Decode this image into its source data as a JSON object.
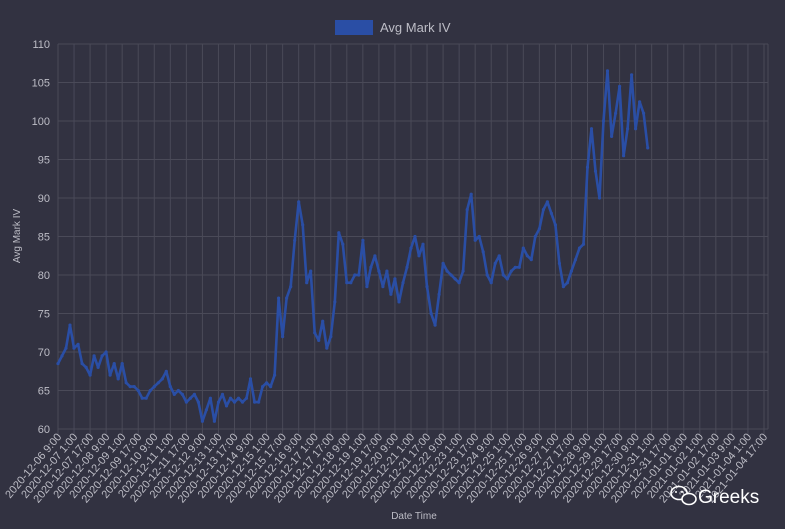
{
  "colors": {
    "background": "#323241",
    "series": "#2a4ea5",
    "text": "#bdbdc6",
    "grid": "#4a4a58"
  },
  "watermark": {
    "text": "Greeks",
    "icon": "wechat-icon"
  },
  "chart_data": {
    "type": "line",
    "title": "",
    "xlabel": "Date Time",
    "ylabel": "Avg Mark IV",
    "ylim": [
      60,
      110
    ],
    "yticks": [
      60,
      65,
      70,
      75,
      80,
      85,
      90,
      95,
      100,
      105,
      110
    ],
    "xticks": [
      "2020-12-06 9:00",
      "2020-12-07 1:00",
      "2020-12-07 17:00",
      "2020-12-08 9:00",
      "2020-12-09 1:00",
      "2020-12-09 17:00",
      "2020-12-10 9:00",
      "2020-12-11 1:00",
      "2020-12-11 17:00",
      "2020-12-12 9:00",
      "2020-12-13 1:00",
      "2020-12-13 17:00",
      "2020-12-14 9:00",
      "2020-12-15 1:00",
      "2020-12-15 17:00",
      "2020-12-16 9:00",
      "2020-12-17 1:00",
      "2020-12-17 17:00",
      "2020-12-18 9:00",
      "2020-12-19 1:00",
      "2020-12-19 17:00",
      "2020-12-20 9:00",
      "2020-12-21 1:00",
      "2020-12-21 17:00",
      "2020-12-22 9:00",
      "2020-12-23 1:00",
      "2020-12-23 17:00",
      "2020-12-24 9:00",
      "2020-12-25 1:00",
      "2020-12-25 17:00",
      "2020-12-26 9:00",
      "2020-12-27 1:00",
      "2020-12-27 17:00",
      "2020-12-28 9:00",
      "2020-12-29 1:00",
      "2020-12-29 17:00",
      "2020-12-30 9:00",
      "2020-12-31 1:00",
      "2020-12-31 17:00",
      "2021-01-01 9:00",
      "2021-01-02 1:00",
      "2021-01-02 17:00",
      "2021-01-03 9:00",
      "2021-01-04 1:00",
      "2021-01-04 17:00"
    ],
    "legend": {
      "position": "top-center"
    },
    "grid": true,
    "series": [
      {
        "name": "Avg Mark IV",
        "color": "#2a4ea5",
        "points": [
          [
            "2020-12-06 9:00",
            68.5
          ],
          [
            "2020-12-06 13:00",
            69.5
          ],
          [
            "2020-12-06 17:00",
            70.5
          ],
          [
            "2020-12-06 21:00",
            73.5
          ],
          [
            "2020-12-07 1:00",
            70.5
          ],
          [
            "2020-12-07 5:00",
            71.0
          ],
          [
            "2020-12-07 9:00",
            68.5
          ],
          [
            "2020-12-07 13:00",
            68.0
          ],
          [
            "2020-12-07 17:00",
            67.0
          ],
          [
            "2020-12-07 21:00",
            69.5
          ],
          [
            "2020-12-08 1:00",
            68.0
          ],
          [
            "2020-12-08 5:00",
            69.5
          ],
          [
            "2020-12-08 9:00",
            70.0
          ],
          [
            "2020-12-08 13:00",
            67.0
          ],
          [
            "2020-12-08 17:00",
            68.5
          ],
          [
            "2020-12-08 21:00",
            66.5
          ],
          [
            "2020-12-09 1:00",
            68.5
          ],
          [
            "2020-12-09 5:00",
            66.0
          ],
          [
            "2020-12-09 9:00",
            65.5
          ],
          [
            "2020-12-09 13:00",
            65.5
          ],
          [
            "2020-12-09 17:00",
            65.0
          ],
          [
            "2020-12-09 21:00",
            64.0
          ],
          [
            "2020-12-10 1:00",
            64.0
          ],
          [
            "2020-12-10 5:00",
            65.0
          ],
          [
            "2020-12-10 9:00",
            65.5
          ],
          [
            "2020-12-10 13:00",
            66.0
          ],
          [
            "2020-12-10 17:00",
            66.5
          ],
          [
            "2020-12-10 21:00",
            67.5
          ],
          [
            "2020-12-11 1:00",
            65.5
          ],
          [
            "2020-12-11 5:00",
            64.5
          ],
          [
            "2020-12-11 9:00",
            65.0
          ],
          [
            "2020-12-11 13:00",
            64.5
          ],
          [
            "2020-12-11 17:00",
            63.5
          ],
          [
            "2020-12-11 21:00",
            64.0
          ],
          [
            "2020-12-12 1:00",
            64.5
          ],
          [
            "2020-12-12 5:00",
            63.5
          ],
          [
            "2020-12-12 9:00",
            61.0
          ],
          [
            "2020-12-12 13:00",
            62.5
          ],
          [
            "2020-12-12 17:00",
            64.0
          ],
          [
            "2020-12-12 21:00",
            61.0
          ],
          [
            "2020-12-13 1:00",
            63.5
          ],
          [
            "2020-12-13 5:00",
            64.5
          ],
          [
            "2020-12-13 9:00",
            63.0
          ],
          [
            "2020-12-13 13:00",
            64.0
          ],
          [
            "2020-12-13 17:00",
            63.5
          ],
          [
            "2020-12-13 21:00",
            64.0
          ],
          [
            "2020-12-14 1:00",
            63.5
          ],
          [
            "2020-12-14 5:00",
            64.0
          ],
          [
            "2020-12-14 9:00",
            66.5
          ],
          [
            "2020-12-14 13:00",
            63.5
          ],
          [
            "2020-12-14 17:00",
            63.5
          ],
          [
            "2020-12-14 21:00",
            65.5
          ],
          [
            "2020-12-15 1:00",
            66.0
          ],
          [
            "2020-12-15 5:00",
            65.5
          ],
          [
            "2020-12-15 9:00",
            67.0
          ],
          [
            "2020-12-15 13:00",
            77.0
          ],
          [
            "2020-12-15 17:00",
            72.0
          ],
          [
            "2020-12-15 21:00",
            77.0
          ],
          [
            "2020-12-16 1:00",
            78.5
          ],
          [
            "2020-12-16 5:00",
            84.5
          ],
          [
            "2020-12-16 9:00",
            89.5
          ],
          [
            "2020-12-16 13:00",
            86.5
          ],
          [
            "2020-12-16 17:00",
            79.0
          ],
          [
            "2020-12-16 21:00",
            80.5
          ],
          [
            "2020-12-17 1:00",
            72.5
          ],
          [
            "2020-12-17 5:00",
            71.5
          ],
          [
            "2020-12-17 9:00",
            74.0
          ],
          [
            "2020-12-17 13:00",
            70.5
          ],
          [
            "2020-12-17 17:00",
            72.0
          ],
          [
            "2020-12-17 21:00",
            76.5
          ],
          [
            "2020-12-18 1:00",
            85.5
          ],
          [
            "2020-12-18 5:00",
            84.0
          ],
          [
            "2020-12-18 9:00",
            79.0
          ],
          [
            "2020-12-18 13:00",
            79.0
          ],
          [
            "2020-12-18 17:00",
            80.0
          ],
          [
            "2020-12-18 21:00",
            80.0
          ],
          [
            "2020-12-19 1:00",
            84.5
          ],
          [
            "2020-12-19 5:00",
            78.5
          ],
          [
            "2020-12-19 9:00",
            81.0
          ],
          [
            "2020-12-19 13:00",
            82.5
          ],
          [
            "2020-12-19 17:00",
            80.5
          ],
          [
            "2020-12-19 21:00",
            78.5
          ],
          [
            "2020-12-20 1:00",
            80.5
          ],
          [
            "2020-12-20 5:00",
            77.5
          ],
          [
            "2020-12-20 9:00",
            79.5
          ],
          [
            "2020-12-20 13:00",
            76.5
          ],
          [
            "2020-12-20 17:00",
            79.0
          ],
          [
            "2020-12-20 21:00",
            81.0
          ],
          [
            "2020-12-21 1:00",
            83.5
          ],
          [
            "2020-12-21 5:00",
            85.0
          ],
          [
            "2020-12-21 9:00",
            82.5
          ],
          [
            "2020-12-21 13:00",
            84.0
          ],
          [
            "2020-12-21 17:00",
            78.5
          ],
          [
            "2020-12-21 21:00",
            75.0
          ],
          [
            "2020-12-22 1:00",
            73.5
          ],
          [
            "2020-12-22 5:00",
            77.5
          ],
          [
            "2020-12-22 9:00",
            81.5
          ],
          [
            "2020-12-22 13:00",
            80.5
          ],
          [
            "2020-12-22 17:00",
            80.0
          ],
          [
            "2020-12-22 21:00",
            79.5
          ],
          [
            "2020-12-23 1:00",
            79.0
          ],
          [
            "2020-12-23 5:00",
            80.5
          ],
          [
            "2020-12-23 9:00",
            88.5
          ],
          [
            "2020-12-23 13:00",
            90.5
          ],
          [
            "2020-12-23 17:00",
            84.5
          ],
          [
            "2020-12-23 21:00",
            85.0
          ],
          [
            "2020-12-24 1:00",
            83.0
          ],
          [
            "2020-12-24 5:00",
            80.0
          ],
          [
            "2020-12-24 9:00",
            79.0
          ],
          [
            "2020-12-24 13:00",
            81.5
          ],
          [
            "2020-12-24 17:00",
            82.5
          ],
          [
            "2020-12-24 21:00",
            80.0
          ],
          [
            "2020-12-25 1:00",
            79.5
          ],
          [
            "2020-12-25 5:00",
            80.5
          ],
          [
            "2020-12-25 9:00",
            81.0
          ],
          [
            "2020-12-25 13:00",
            81.0
          ],
          [
            "2020-12-25 17:00",
            83.5
          ],
          [
            "2020-12-25 21:00",
            82.5
          ],
          [
            "2020-12-26 1:00",
            82.0
          ],
          [
            "2020-12-26 5:00",
            85.0
          ],
          [
            "2020-12-26 9:00",
            86.0
          ],
          [
            "2020-12-26 13:00",
            88.5
          ],
          [
            "2020-12-26 17:00",
            89.5
          ],
          [
            "2020-12-26 21:00",
            88.0
          ],
          [
            "2020-12-27 1:00",
            86.5
          ],
          [
            "2020-12-27 5:00",
            81.5
          ],
          [
            "2020-12-27 9:00",
            78.5
          ],
          [
            "2020-12-27 13:00",
            79.0
          ],
          [
            "2020-12-27 17:00",
            80.5
          ],
          [
            "2020-12-27 21:00",
            82.0
          ],
          [
            "2020-12-28 1:00",
            83.5
          ],
          [
            "2020-12-28 5:00",
            84.0
          ],
          [
            "2020-12-28 9:00",
            94.0
          ],
          [
            "2020-12-28 13:00",
            99.0
          ],
          [
            "2020-12-28 17:00",
            93.5
          ],
          [
            "2020-12-28 21:00",
            90.0
          ],
          [
            "2020-12-29 1:00",
            100.0
          ],
          [
            "2020-12-29 5:00",
            106.5
          ],
          [
            "2020-12-29 9:00",
            98.0
          ],
          [
            "2020-12-29 13:00",
            101.0
          ],
          [
            "2020-12-29 17:00",
            104.5
          ],
          [
            "2020-12-29 21:00",
            95.5
          ],
          [
            "2020-12-30 1:00",
            99.0
          ],
          [
            "2020-12-30 5:00",
            106.0
          ],
          [
            "2020-12-30 9:00",
            99.0
          ],
          [
            "2020-12-30 13:00",
            102.5
          ],
          [
            "2020-12-30 17:00",
            101.0
          ],
          [
            "2020-12-30 21:00",
            96.5
          ]
        ]
      }
    ]
  }
}
